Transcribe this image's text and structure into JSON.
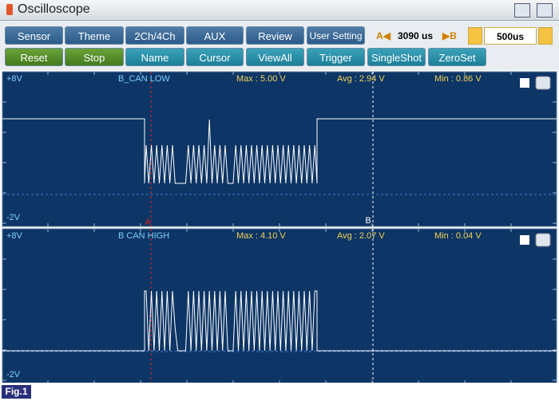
{
  "title": "Oscilloscope",
  "toolbar": {
    "row1": [
      "Sensor",
      "Theme",
      "2Ch/4Ch",
      "AUX",
      "Review",
      "User Setting"
    ],
    "row2": [
      "Reset",
      "Stop",
      "Name",
      "Cursor",
      "ViewAll",
      "Trigger",
      "SingleShot",
      "ZeroSet"
    ],
    "cursor_a": "A◀",
    "cursor_value": "3090 us",
    "cursor_b": "▶B",
    "time_div": "500us"
  },
  "channels": [
    {
      "top_label": "+8V",
      "name": "B_CAN LOW",
      "max": "Max : 5.00 V",
      "avg": "Avg : 2.94 V",
      "min": "Min : 0.86 V",
      "bottom_label": "-2V",
      "marker_a": "A",
      "marker_b": "B"
    },
    {
      "top_label": "+8V",
      "name": "B CAN HIGH",
      "max": "Max : 4.10 V",
      "avg": "Avg : 2.07 V",
      "min": "Min : 0.04 V",
      "bottom_label": "-2V"
    }
  ],
  "figure_label": "Fig.1"
}
